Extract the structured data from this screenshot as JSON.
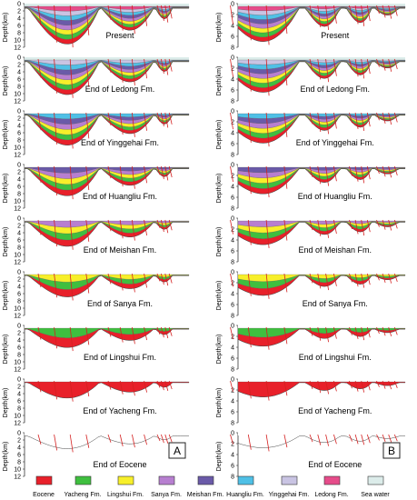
{
  "axis": {
    "ylabel": "Depth(km)",
    "left_ticks": [
      "0",
      "2",
      "4",
      "6",
      "8",
      "10",
      "12"
    ],
    "right_ticks": [
      "0",
      "2",
      "4",
      "6",
      "8"
    ]
  },
  "stages": [
    "Present",
    "End of Ledong Fm.",
    "End of Yinggehai Fm.",
    "End of Huangliu Fm.",
    "End of Meishan Fm.",
    "End of Sanya Fm.",
    "End of Lingshui Fm.",
    "End of Yacheng Fm.",
    "End of Eocene"
  ],
  "panels": {
    "left": "A",
    "right": "B"
  },
  "legend": [
    {
      "label": "Eocene",
      "color": "#e8202a"
    },
    {
      "label": "Yacheng Fm.",
      "color": "#3fbf3f"
    },
    {
      "label": "Lingshui Fm.",
      "color": "#f7ef2a"
    },
    {
      "label": "Sanya Fm.",
      "color": "#b77fd0"
    },
    {
      "label": "Meishan Fm.",
      "color": "#6a5aa8"
    },
    {
      "label": "Huangliu Fm.",
      "color": "#4fc0e6"
    },
    {
      "label": "Yinggehai Fm.",
      "color": "#c9c4e3"
    },
    {
      "label": "Ledong Fm.",
      "color": "#e64c8a"
    },
    {
      "label": "Sea water",
      "color": "#dcecea"
    }
  ]
}
